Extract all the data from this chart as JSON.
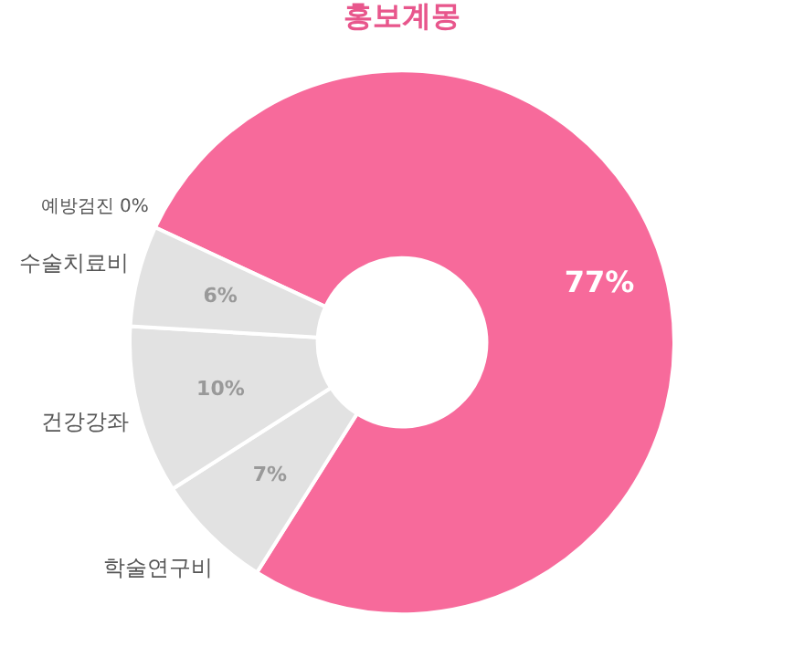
{
  "chart_data": {
    "type": "donut",
    "title": "홍보계몽",
    "categories": [
      null,
      "학술연구비",
      "건강강좌",
      "수술치료비",
      "예방검진"
    ],
    "values": [
      77,
      7,
      10,
      6,
      0
    ],
    "colors": [
      "#f76a9b",
      "#e2e2e2",
      "#e2e2e2",
      "#e2e2e2",
      "#e2e2e2"
    ],
    "value_labels": [
      "77%",
      "7%",
      "10%",
      "6%",
      "0%"
    ],
    "legend": false
  }
}
